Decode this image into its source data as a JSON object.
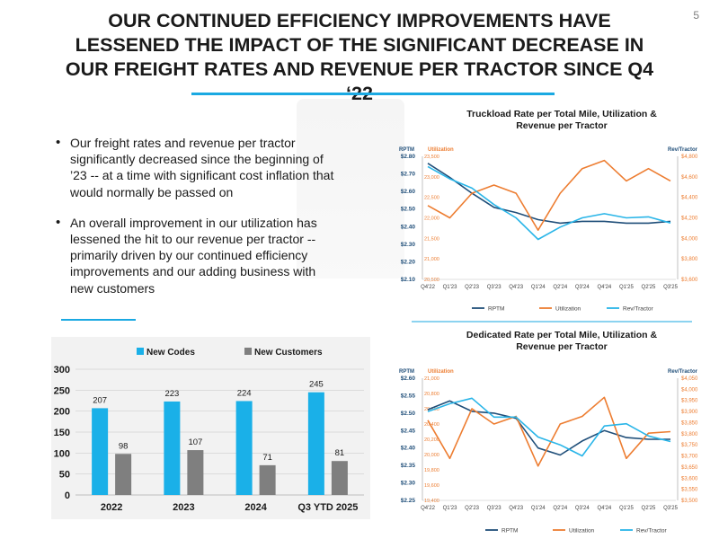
{
  "page": {
    "slide_number": "5",
    "title": "OUR CONTINUED EFFICIENCY IMPROVEMENTS HAVE LESSENED THE IMPACT OF THE SIGNIFICANT DECREASE IN OUR FREIGHT RATES AND REVENUE PER TRACTOR SINCE Q4 ‘22",
    "bullets": [
      "Our freight rates and revenue per tractor significantly decreased since the beginning of ’23 -- at a time with significant cost inflation that would normally be passed on",
      "An overall improvement in our utilization has lessened the hit to our revenue per tractor -- primarily driven by our continued efficiency improvements and our adding business with new customers"
    ]
  },
  "colors": {
    "accent": "#1aa9e2",
    "rptm": "#1f4e79",
    "utilization": "#ed7d31",
    "rev_tractor": "#29b5e8",
    "new_codes": "#1ab0e8",
    "new_customers": "#7f7f7f"
  },
  "chart_data": [
    {
      "id": "bar",
      "type": "bar",
      "title": "",
      "categories": [
        "2022",
        "2023",
        "2024",
        "Q3 YTD 2025"
      ],
      "series": [
        {
          "name": "New Codes",
          "values": [
            207,
            223,
            224,
            245
          ]
        },
        {
          "name": "New Customers",
          "values": [
            98,
            107,
            71,
            81
          ]
        }
      ],
      "ylim": [
        0,
        300
      ],
      "yticks": [
        "0",
        "50",
        "100",
        "150",
        "200",
        "250",
        "300"
      ],
      "legend": "top"
    },
    {
      "id": "truckload",
      "type": "line",
      "title": "Truckload Rate per Total Mile, Utilization & Revenue per Tractor",
      "categories": [
        "Q4'22",
        "Q1'23",
        "Q2'23",
        "Q3'23",
        "Q4'23",
        "Q1'24",
        "Q2'24",
        "Q3'24",
        "Q4'24",
        "Q1'25",
        "Q2'25",
        "Q3'25"
      ],
      "axis_labels": {
        "left": "RPTM",
        "left_inner": "Utilization",
        "right": "Rev/Tractor"
      },
      "left_axis": {
        "range": [
          2.1,
          2.8
        ],
        "ticks": [
          "$2.80",
          "$2.70",
          "$2.60",
          "$2.50",
          "$2.40",
          "$2.30",
          "$2.20",
          "$2.10"
        ]
      },
      "inner_axis": {
        "range": [
          20500,
          23500
        ],
        "ticks": [
          "23,500",
          "23,000",
          "22,500",
          "22,000",
          "21,500",
          "21,000",
          "20,500"
        ]
      },
      "right_axis": {
        "range": [
          3600,
          4800
        ],
        "ticks": [
          "$4,800",
          "$4,600",
          "$4,400",
          "$4,200",
          "$4,000",
          "$3,800",
          "$3,600"
        ]
      },
      "series": [
        {
          "name": "RPTM",
          "axis": "left",
          "values": [
            2.76,
            2.68,
            2.59,
            2.51,
            2.48,
            2.44,
            2.42,
            2.43,
            2.43,
            2.42,
            2.42,
            2.43
          ]
        },
        {
          "name": "Utilization",
          "axis": "inner",
          "values": [
            22300.0,
            22000.0,
            22600.0,
            22800.0,
            22600.0,
            21700.0,
            22600.0,
            23200.0,
            23400.0,
            22900.0,
            23200.0,
            22900.0
          ]
        },
        {
          "name": "Rev/Tractor",
          "axis": "right",
          "values": [
            4700,
            4580,
            4490,
            4330,
            4200,
            3990,
            4110,
            4200,
            4240,
            4200,
            4210,
            4150
          ]
        }
      ]
    },
    {
      "id": "dedicated",
      "type": "line",
      "title": "Dedicated Rate per Total Mile, Utilization & Revenue per Tractor",
      "categories": [
        "Q4'22",
        "Q1'23",
        "Q2'23",
        "Q3'23",
        "Q4'23",
        "Q1'24",
        "Q2'24",
        "Q3'24",
        "Q4'24",
        "Q1'25",
        "Q2'25",
        "Q3'25"
      ],
      "axis_labels": {
        "left": "RPTM",
        "left_inner": "Utilization",
        "right": "Rev/Tractor"
      },
      "left_axis": {
        "range": [
          2.25,
          2.6
        ],
        "ticks": [
          "$2.60",
          "$2.55",
          "$2.50",
          "$2.45",
          "$2.40",
          "$2.35",
          "$2.30",
          "$2.25"
        ]
      },
      "inner_axis": {
        "range": [
          19400,
          21000
        ],
        "ticks": [
          "21,000",
          "20,800",
          "20,600",
          "20,400",
          "20,200",
          "20,000",
          "19,800",
          "19,600",
          "19,400"
        ]
      },
      "right_axis": {
        "range": [
          3500,
          4050
        ],
        "ticks": [
          "$4,050",
          "$4,000",
          "$3,950",
          "$3,900",
          "$3,850",
          "$3,800",
          "$3,750",
          "$3,700",
          "$3,650",
          "$3,600",
          "$3,550",
          "$3,500"
        ]
      },
      "series": [
        {
          "name": "RPTM",
          "axis": "left",
          "values": [
            2.51,
            2.535,
            2.505,
            2.5,
            2.485,
            2.4,
            2.38,
            2.42,
            2.45,
            2.43,
            2.425,
            2.425
          ]
        },
        {
          "name": "Utilization",
          "axis": "inner",
          "values": [
            20450.0,
            19950.0,
            20600.0,
            20400.0,
            20500.0,
            19850.0,
            20400.0,
            20500.0,
            20750.0,
            19950.0,
            20280.0,
            20300.0
          ]
        },
        {
          "name": "Rev/Tractor",
          "axis": "right",
          "values": [
            3900,
            3935,
            3960,
            3875,
            3875,
            3785,
            3750,
            3700,
            3835,
            3845,
            3790,
            3765
          ]
        }
      ]
    }
  ]
}
